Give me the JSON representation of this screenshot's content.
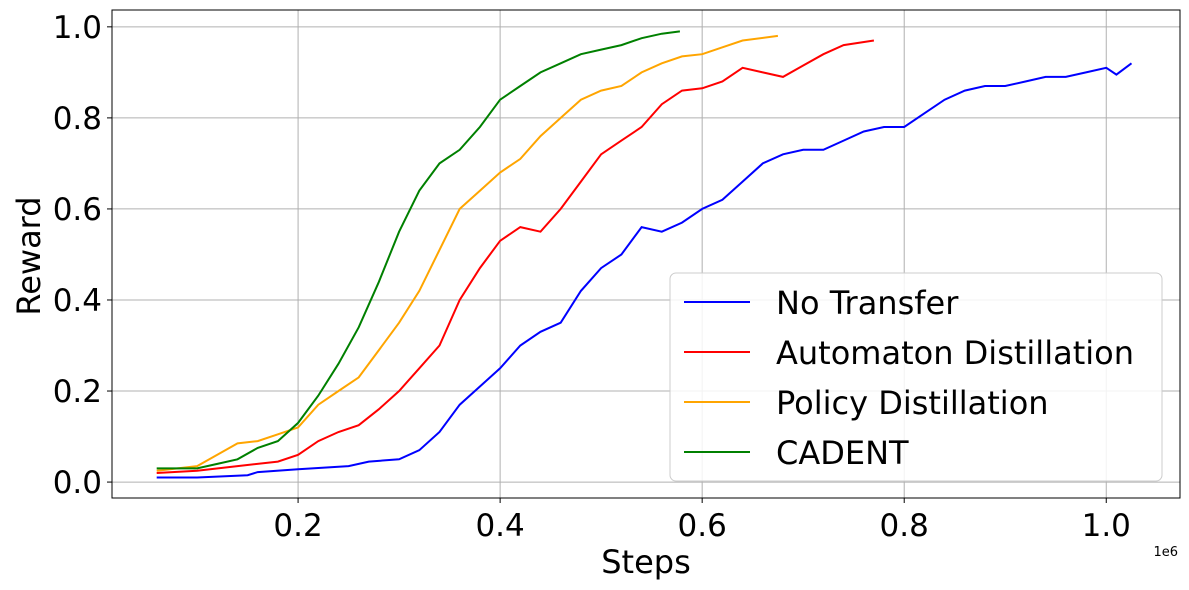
{
  "chart_data": {
    "type": "line",
    "xlabel": "Steps",
    "ylabel": "Reward",
    "x_offset_text": "1e6",
    "xlim": [
      0.0158,
      1.073
    ],
    "ylim": [
      -0.035,
      1.037
    ],
    "xticks": [
      0.2,
      0.4,
      0.6,
      0.8,
      {
        "value": 1.0,
        "label": "1.0"
      }
    ],
    "yticks": [
      {
        "value": 0,
        "label": "0.0"
      },
      0.2,
      0.4,
      0.6,
      0.8,
      {
        "value": 1.0,
        "label": "1.0"
      }
    ],
    "grid": true,
    "legend": "lower right",
    "series": [
      {
        "name": "No Transfer",
        "color": "#0000ff",
        "x": [
          0.06,
          0.1,
          0.15,
          0.16,
          0.2,
          0.25,
          0.27,
          0.3,
          0.32,
          0.34,
          0.36,
          0.38,
          0.4,
          0.42,
          0.44,
          0.46,
          0.48,
          0.5,
          0.52,
          0.54,
          0.56,
          0.58,
          0.6,
          0.62,
          0.64,
          0.66,
          0.68,
          0.7,
          0.72,
          0.74,
          0.76,
          0.78,
          0.8,
          0.82,
          0.84,
          0.86,
          0.88,
          0.9,
          0.92,
          0.94,
          0.96,
          0.98,
          1.0,
          1.01,
          1.025
        ],
        "values": [
          0.01,
          0.01,
          0.015,
          0.022,
          0.028,
          0.035,
          0.045,
          0.05,
          0.07,
          0.11,
          0.17,
          0.21,
          0.25,
          0.3,
          0.33,
          0.35,
          0.42,
          0.47,
          0.5,
          0.56,
          0.55,
          0.57,
          0.6,
          0.62,
          0.66,
          0.7,
          0.72,
          0.73,
          0.73,
          0.75,
          0.77,
          0.78,
          0.78,
          0.81,
          0.84,
          0.86,
          0.87,
          0.87,
          0.88,
          0.89,
          0.89,
          0.9,
          0.91,
          0.895,
          0.92
        ]
      },
      {
        "name": "Automaton Distillation",
        "color": "#ff0000",
        "x": [
          0.06,
          0.1,
          0.14,
          0.18,
          0.2,
          0.22,
          0.24,
          0.26,
          0.28,
          0.3,
          0.32,
          0.34,
          0.36,
          0.38,
          0.4,
          0.42,
          0.44,
          0.46,
          0.48,
          0.5,
          0.52,
          0.54,
          0.56,
          0.58,
          0.6,
          0.62,
          0.64,
          0.66,
          0.68,
          0.7,
          0.72,
          0.74,
          0.77
        ],
        "values": [
          0.02,
          0.025,
          0.035,
          0.045,
          0.06,
          0.09,
          0.11,
          0.125,
          0.16,
          0.2,
          0.25,
          0.3,
          0.4,
          0.47,
          0.53,
          0.56,
          0.55,
          0.6,
          0.66,
          0.72,
          0.75,
          0.78,
          0.83,
          0.86,
          0.865,
          0.88,
          0.91,
          0.9,
          0.89,
          0.915,
          0.94,
          0.96,
          0.97
        ]
      },
      {
        "name": "Policy Distillation",
        "color": "#ffa500",
        "x": [
          0.06,
          0.1,
          0.12,
          0.14,
          0.16,
          0.18,
          0.2,
          0.22,
          0.24,
          0.26,
          0.28,
          0.3,
          0.32,
          0.34,
          0.36,
          0.38,
          0.4,
          0.42,
          0.44,
          0.46,
          0.48,
          0.5,
          0.52,
          0.54,
          0.56,
          0.58,
          0.6,
          0.62,
          0.64,
          0.675
        ],
        "values": [
          0.025,
          0.035,
          0.06,
          0.085,
          0.09,
          0.105,
          0.12,
          0.17,
          0.2,
          0.23,
          0.29,
          0.35,
          0.42,
          0.51,
          0.6,
          0.64,
          0.68,
          0.71,
          0.76,
          0.8,
          0.84,
          0.86,
          0.87,
          0.9,
          0.92,
          0.935,
          0.94,
          0.955,
          0.97,
          0.98
        ]
      },
      {
        "name": "CADENT",
        "color": "#008000",
        "x": [
          0.06,
          0.1,
          0.12,
          0.14,
          0.16,
          0.18,
          0.2,
          0.22,
          0.24,
          0.26,
          0.28,
          0.3,
          0.32,
          0.34,
          0.36,
          0.38,
          0.4,
          0.42,
          0.44,
          0.46,
          0.48,
          0.5,
          0.52,
          0.54,
          0.56,
          0.578
        ],
        "values": [
          0.03,
          0.03,
          0.04,
          0.05,
          0.075,
          0.09,
          0.13,
          0.19,
          0.26,
          0.34,
          0.44,
          0.55,
          0.64,
          0.7,
          0.73,
          0.78,
          0.84,
          0.87,
          0.9,
          0.92,
          0.94,
          0.95,
          0.96,
          0.975,
          0.985,
          0.99
        ]
      }
    ]
  }
}
